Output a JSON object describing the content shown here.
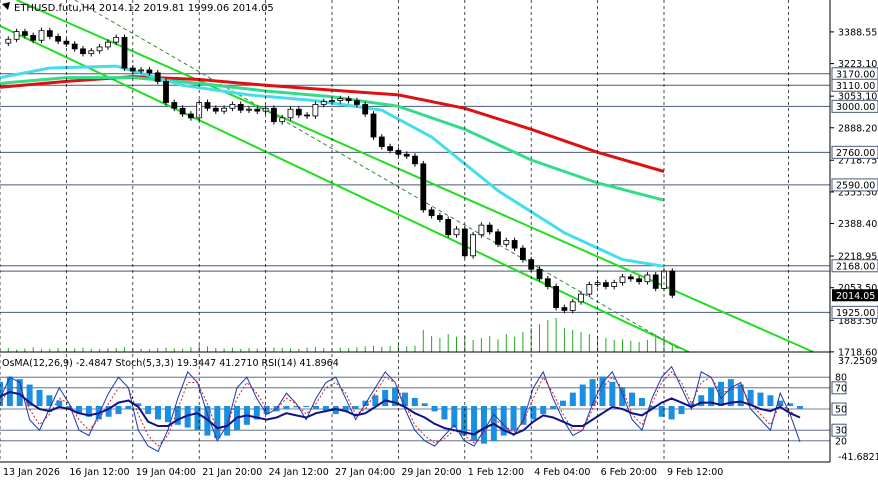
{
  "header": {
    "symbol_line": "ETHUSD.futu,H4  2014.12 2019.81 1999.06 2014.05"
  },
  "indicator_header": {
    "line": "OsMA(12,26,9) -2.4847  Stoch(5,3,3) 19.3447 41.2710  RSI(14) 41.8964"
  },
  "chart_data": [
    {
      "type": "candlestick",
      "symbol": "ETHUSD.futu",
      "timeframe": "H4",
      "ohlc_last": {
        "open": 2014.12,
        "high": 2019.81,
        "low": 1999.06,
        "close": 2014.05
      },
      "current_price": 2014.05,
      "price_range": [
        1718.0,
        3555.0
      ],
      "price_ticks": [
        "3388.55",
        "3223.10",
        "3053.10",
        "2888.20",
        "2718.75",
        "2553.30",
        "2388.40",
        "2218.95",
        "2053.50",
        "1883.50",
        "1718.60"
      ],
      "x_range": [
        0,
        100
      ],
      "x_tick_labels": [
        {
          "x": 0,
          "label": "13 Jan 2026"
        },
        {
          "x": 8,
          "label": "16 Jan 12:00"
        },
        {
          "x": 16,
          "label": "19 Jan 04:00"
        },
        {
          "x": 24,
          "label": "21 Jan 20:00"
        },
        {
          "x": 32,
          "label": "24 Jan 12:00"
        },
        {
          "x": 40,
          "label": "27 Jan 04:00"
        },
        {
          "x": 48,
          "label": "29 Jan 20:00"
        },
        {
          "x": 56,
          "label": "1 Feb 12:00"
        },
        {
          "x": 64,
          "label": "4 Feb 04:00"
        },
        {
          "x": 72,
          "label": "6 Feb 20:00"
        },
        {
          "x": 80,
          "label": "9 Feb 12:00"
        }
      ],
      "levels": [
        {
          "value": 3170.0,
          "label": "3170.00"
        },
        {
          "value": 3110.0,
          "label": "3110.00"
        },
        {
          "value": 3000.0,
          "label": "3000.00"
        },
        {
          "value": 2760.0,
          "label": "2760.00"
        },
        {
          "value": 2590.0,
          "label": "2590.00"
        },
        {
          "value": 2168.0,
          "label": "2168.00"
        },
        {
          "value": 2140.0,
          "label": ""
        },
        {
          "value": 1925.0,
          "label": "1925.00"
        }
      ],
      "level_color": "#4a5a78",
      "price_path": [
        [
          0,
          3330
        ],
        [
          1,
          3350
        ],
        [
          2,
          3390
        ],
        [
          3,
          3370
        ],
        [
          4,
          3345
        ],
        [
          5,
          3395
        ],
        [
          6,
          3365
        ],
        [
          7,
          3340
        ],
        [
          8,
          3325
        ],
        [
          9,
          3300
        ],
        [
          10,
          3275
        ],
        [
          11,
          3290
        ],
        [
          12,
          3310
        ],
        [
          13,
          3335
        ],
        [
          14,
          3360
        ],
        [
          15,
          3200
        ],
        [
          16,
          3185
        ],
        [
          17,
          3190
        ],
        [
          18,
          3175
        ],
        [
          19,
          3130
        ],
        [
          20,
          3020
        ],
        [
          21,
          2990
        ],
        [
          22,
          2960
        ],
        [
          23,
          2940
        ],
        [
          24,
          3020
        ],
        [
          25,
          2990
        ],
        [
          26,
          2975
        ],
        [
          27,
          2990
        ],
        [
          28,
          3010
        ],
        [
          29,
          2980
        ],
        [
          30,
          2985
        ],
        [
          31,
          2975
        ],
        [
          32,
          2990
        ],
        [
          33,
          2920
        ],
        [
          34,
          2940
        ],
        [
          35,
          2985
        ],
        [
          36,
          2955
        ],
        [
          37,
          2950
        ],
        [
          38,
          3010
        ],
        [
          39,
          3025
        ],
        [
          40,
          3030
        ],
        [
          41,
          3040
        ],
        [
          42,
          3030
        ],
        [
          43,
          3010
        ],
        [
          44,
          2960
        ],
        [
          45,
          2840
        ],
        [
          46,
          2790
        ],
        [
          47,
          2770
        ],
        [
          48,
          2750
        ],
        [
          49,
          2740
        ],
        [
          50,
          2700
        ],
        [
          51,
          2460
        ],
        [
          52,
          2430
        ],
        [
          53,
          2410
        ],
        [
          54,
          2330
        ],
        [
          55,
          2360
        ],
        [
          56,
          2220
        ],
        [
          57,
          2330
        ],
        [
          58,
          2380
        ],
        [
          59,
          2345
        ],
        [
          60,
          2280
        ],
        [
          61,
          2300
        ],
        [
          62,
          2260
        ],
        [
          63,
          2200
        ],
        [
          64,
          2150
        ],
        [
          65,
          2100
        ],
        [
          66,
          2060
        ],
        [
          67,
          1950
        ],
        [
          68,
          1935
        ],
        [
          69,
          1980
        ],
        [
          70,
          2020
        ],
        [
          71,
          2070
        ],
        [
          72,
          2080
        ],
        [
          73,
          2060
        ],
        [
          74,
          2080
        ],
        [
          75,
          2110
        ],
        [
          76,
          2100
        ],
        [
          77,
          2085
        ],
        [
          78,
          2120
        ],
        [
          79,
          2050
        ],
        [
          80,
          2140
        ],
        [
          81,
          2014
        ]
      ],
      "channels": [
        {
          "color": "#22dd22",
          "from": [
            2,
            3555
          ],
          "to": [
            98,
            1718
          ]
        },
        {
          "color": "#22dd22",
          "from": [
            0,
            3420
          ],
          "to": [
            83,
            1718
          ]
        },
        {
          "color": "#3a8a3a",
          "from": [
            9,
            3555
          ],
          "to": [
            82,
            1730
          ],
          "style": "dashed"
        }
      ],
      "moving_averages": [
        {
          "color": "#dd1111",
          "points": [
            [
              0,
              3100
            ],
            [
              8,
              3130
            ],
            [
              16,
              3155
            ],
            [
              24,
              3140
            ],
            [
              32,
              3110
            ],
            [
              40,
              3085
            ],
            [
              48,
              3060
            ],
            [
              56,
              2990
            ],
            [
              64,
              2880
            ],
            [
              72,
              2760
            ],
            [
              80,
              2660
            ]
          ]
        },
        {
          "color": "#33dd88",
          "points": [
            [
              0,
              3120
            ],
            [
              8,
              3150
            ],
            [
              16,
              3150
            ],
            [
              24,
              3120
            ],
            [
              32,
              3080
            ],
            [
              40,
              3050
            ],
            [
              48,
              3000
            ],
            [
              56,
              2880
            ],
            [
              64,
              2720
            ],
            [
              72,
              2600
            ],
            [
              80,
              2510
            ]
          ]
        },
        {
          "color": "#44ddee",
          "points": [
            [
              0,
              3150
            ],
            [
              6,
              3200
            ],
            [
              14,
              3210
            ],
            [
              22,
              3110
            ],
            [
              30,
              3060
            ],
            [
              38,
              3030
            ],
            [
              46,
              2980
            ],
            [
              52,
              2840
            ],
            [
              60,
              2560
            ],
            [
              68,
              2340
            ],
            [
              75,
              2200
            ],
            [
              80,
              2165
            ]
          ]
        }
      ],
      "volume_max": 100,
      "volume": [
        8,
        10,
        6,
        9,
        12,
        7,
        8,
        10,
        6,
        9,
        11,
        8,
        7,
        9,
        10,
        12,
        9,
        8,
        7,
        10,
        11,
        9,
        8,
        12,
        18,
        14,
        10,
        9,
        11,
        8,
        10,
        9,
        12,
        11,
        10,
        9,
        8,
        11,
        12,
        10,
        9,
        11,
        10,
        12,
        14,
        16,
        13,
        15,
        18,
        14,
        16,
        55,
        40,
        35,
        45,
        38,
        42,
        30,
        35,
        40,
        32,
        45,
        38,
        50,
        60,
        70,
        80,
        85,
        60,
        55,
        50,
        45,
        40,
        35,
        30,
        32,
        28,
        25,
        30,
        45,
        35,
        20
      ]
    },
    {
      "type": "oscillator",
      "indicators": [
        "OsMA(12,26,9)",
        "Stoch(5,3,3)",
        "RSI(14)"
      ],
      "osma_range": [
        -41.6821,
        37.2509
      ],
      "osma_ticks": [
        "37.2509",
        "-41.6821"
      ],
      "stoch_rsi_range": [
        0,
        100
      ],
      "stoch_rsi_ticks": [
        "80",
        "70",
        "50",
        "30",
        "20"
      ],
      "stoch_rsi_level_values": [
        80,
        70,
        50,
        30,
        20
      ],
      "osma_values": [
        18,
        22,
        20,
        16,
        12,
        8,
        4,
        -2,
        -6,
        -8,
        -10,
        -8,
        -6,
        -2,
        2,
        -6,
        -10,
        -12,
        -14,
        -16,
        -18,
        -22,
        -24,
        -22,
        -18,
        -14,
        -10,
        -6,
        -4,
        -2,
        -1,
        0,
        -2,
        -4,
        -6,
        -4,
        -2,
        4,
        8,
        12,
        14,
        10,
        6,
        2,
        -4,
        -10,
        -16,
        -22,
        -26,
        -28,
        -26,
        -22,
        -18,
        -14,
        -10,
        -6,
        -2,
        4,
        10,
        16,
        20,
        22,
        18,
        14,
        10,
        6,
        -2,
        -8,
        -10,
        -6,
        2,
        8,
        14,
        18,
        20,
        16,
        12,
        10,
        8,
        4,
        2,
        -2
      ],
      "stoch_main": [
        60,
        80,
        75,
        40,
        30,
        50,
        70,
        55,
        30,
        25,
        45,
        65,
        80,
        70,
        30,
        15,
        10,
        30,
        60,
        85,
        75,
        45,
        20,
        35,
        70,
        80,
        60,
        45,
        50,
        65,
        55,
        40,
        60,
        75,
        80,
        60,
        40,
        55,
        70,
        85,
        75,
        50,
        30,
        20,
        15,
        25,
        35,
        20,
        15,
        30,
        45,
        35,
        25,
        40,
        70,
        85,
        60,
        40,
        25,
        30,
        55,
        75,
        85,
        65,
        40,
        30,
        60,
        80,
        90,
        70,
        50,
        85,
        80,
        60,
        70,
        75,
        50,
        40,
        30,
        65,
        45,
        19
      ],
      "stoch_signal": [
        55,
        70,
        70,
        50,
        35,
        45,
        60,
        55,
        40,
        30,
        40,
        55,
        70,
        70,
        45,
        25,
        15,
        25,
        50,
        75,
        75,
        55,
        30,
        35,
        60,
        75,
        65,
        50,
        50,
        60,
        55,
        45,
        55,
        70,
        75,
        65,
        45,
        50,
        65,
        80,
        75,
        55,
        35,
        25,
        18,
        22,
        30,
        25,
        18,
        28,
        40,
        35,
        28,
        38,
        60,
        80,
        65,
        45,
        30,
        30,
        50,
        70,
        80,
        70,
        45,
        35,
        55,
        75,
        85,
        75,
        55,
        75,
        80,
        65,
        68,
        72,
        55,
        45,
        35,
        55,
        48,
        41
      ],
      "rsi_values": [
        62,
        66,
        64,
        56,
        50,
        48,
        52,
        50,
        46,
        44,
        46,
        50,
        56,
        58,
        52,
        38,
        34,
        34,
        40,
        44,
        46,
        40,
        32,
        34,
        42,
        44,
        42,
        40,
        42,
        46,
        44,
        42,
        46,
        48,
        50,
        48,
        44,
        46,
        52,
        58,
        56,
        52,
        46,
        42,
        36,
        32,
        30,
        28,
        26,
        32,
        36,
        30,
        26,
        30,
        38,
        44,
        42,
        38,
        34,
        34,
        40,
        46,
        52,
        50,
        46,
        44,
        50,
        56,
        60,
        56,
        52,
        56,
        56,
        54,
        56,
        57,
        54,
        50,
        48,
        52,
        46,
        42
      ]
    }
  ]
}
